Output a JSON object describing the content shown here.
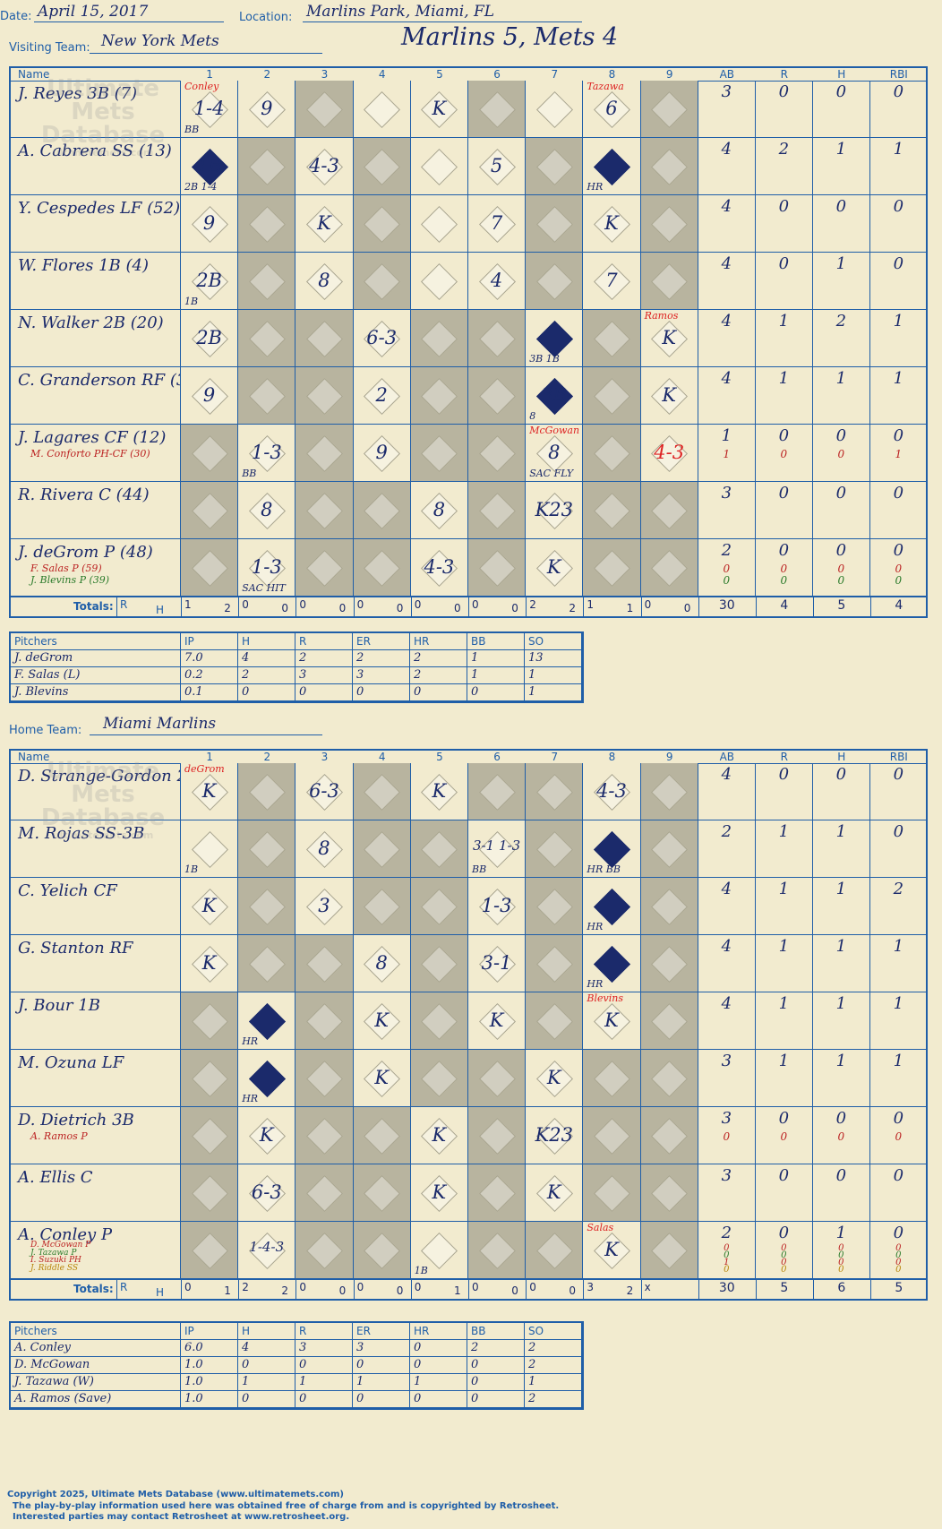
{
  "header": {
    "date_label": "Date:",
    "date": "April 15, 2017",
    "location_label": "Location:",
    "location": "Marlins Park, Miami, FL",
    "visiting_label": "Visiting Team:",
    "visiting_team": "New York Mets",
    "home_label": "Home Team:",
    "home_team": "Miami Marlins",
    "result": "Marlins 5, Mets 4"
  },
  "watermark": {
    "line1": "Ultimate",
    "line2": "Mets",
    "line3": "Database",
    "line4": "ultimatemets.com"
  },
  "col_headers": {
    "name": "Name",
    "innings": [
      "1",
      "2",
      "3",
      "4",
      "5",
      "6",
      "7",
      "8",
      "9"
    ],
    "stats": [
      "AB",
      "R",
      "H",
      "RBI"
    ]
  },
  "totals_label": "Totals:",
  "visitors": {
    "rows": [
      {
        "name": "J. Reyes 3B (7)",
        "stats": [
          "3",
          "0",
          "0",
          "0"
        ],
        "cells": [
          {
            "i": 1,
            "note": "Conley",
            "p": "1-4",
            "s": "BB"
          },
          {
            "i": 2,
            "p": "9"
          },
          {
            "i": 5,
            "p": "K"
          },
          {
            "i": 8,
            "note": "Tazawa",
            "p": "6"
          }
        ]
      },
      {
        "name": "A. Cabrera SS (13)",
        "stats": [
          "4",
          "2",
          "1",
          "1"
        ],
        "cells": [
          {
            "i": 1,
            "scored": true,
            "p": "1B",
            "s": "2B 1-4"
          },
          {
            "i": 3,
            "p": "4-3"
          },
          {
            "i": 6,
            "p": "5"
          },
          {
            "i": 8,
            "scored": true,
            "s": "HR"
          }
        ]
      },
      {
        "name": "Y. Cespedes LF (52)",
        "stats": [
          "4",
          "0",
          "0",
          "0"
        ],
        "cells": [
          {
            "i": 1,
            "p": "9"
          },
          {
            "i": 3,
            "p": "K"
          },
          {
            "i": 6,
            "p": "7"
          },
          {
            "i": 8,
            "p": "K"
          }
        ]
      },
      {
        "name": "W. Flores 1B (4)",
        "stats": [
          "4",
          "0",
          "1",
          "0"
        ],
        "cells": [
          {
            "i": 1,
            "p": "2B",
            "s": "1B"
          },
          {
            "i": 3,
            "p": "8"
          },
          {
            "i": 6,
            "p": "4"
          },
          {
            "i": 8,
            "p": "7"
          }
        ]
      },
      {
        "name": "N. Walker 2B (20)",
        "stats": [
          "4",
          "1",
          "2",
          "1"
        ],
        "cells": [
          {
            "i": 1,
            "p": "2B"
          },
          {
            "i": 4,
            "p": "6-3"
          },
          {
            "i": 7,
            "scored": true,
            "s": "3B 1B"
          },
          {
            "i": 9,
            "note": "Ramos",
            "p": "K"
          }
        ]
      },
      {
        "name": "C. Granderson RF (3)",
        "stats": [
          "4",
          "1",
          "1",
          "1"
        ],
        "cells": [
          {
            "i": 1,
            "p": "9"
          },
          {
            "i": 4,
            "p": "2"
          },
          {
            "i": 7,
            "scored": true,
            "p": "3B",
            "s": "8"
          },
          {
            "i": 9,
            "p": "K"
          }
        ]
      },
      {
        "name": "J. Lagares CF (12)",
        "stats": [
          "1",
          "0",
          "0",
          "0"
        ],
        "subs": [
          {
            "name": "M. Conforto PH-CF (30)",
            "color": "#b22",
            "stats": [
              "1",
              "0",
              "0",
              "1"
            ]
          }
        ],
        "cells": [
          {
            "i": 2,
            "p": "1-3",
            "s": "BB"
          },
          {
            "i": 4,
            "p": "9"
          },
          {
            "i": 7,
            "note": "McGowan",
            "p": "8",
            "s": "SAC FLY"
          },
          {
            "i": 9,
            "p": "4-3",
            "red": true
          }
        ]
      },
      {
        "name": "R. Rivera C (44)",
        "stats": [
          "3",
          "0",
          "0",
          "0"
        ],
        "cells": [
          {
            "i": 2,
            "p": "8"
          },
          {
            "i": 5,
            "p": "8"
          },
          {
            "i": 7,
            "p": "K23"
          }
        ]
      },
      {
        "name": "J. deGrom P (48)",
        "stats": [
          "2",
          "0",
          "0",
          "0"
        ],
        "subs": [
          {
            "name": "F. Salas P (59)",
            "color": "#b22",
            "stats": [
              "0",
              "0",
              "0",
              "0"
            ]
          },
          {
            "name": "J. Blevins P (39)",
            "color": "#2a7a2a",
            "stats": [
              "0",
              "0",
              "0",
              "0"
            ]
          }
        ],
        "cells": [
          {
            "i": 2,
            "p": "1-3",
            "s": "SAC HIT"
          },
          {
            "i": 5,
            "p": "4-3"
          },
          {
            "i": 7,
            "p": "K"
          }
        ]
      }
    ],
    "gray_pattern": [
      [
        0,
        0,
        1,
        0,
        0,
        1,
        0,
        0,
        1
      ],
      [
        0,
        1,
        0,
        1,
        0,
        0,
        1,
        0,
        1
      ],
      [
        0,
        1,
        0,
        1,
        0,
        0,
        1,
        0,
        1
      ],
      [
        0,
        1,
        0,
        1,
        0,
        0,
        1,
        0,
        1
      ],
      [
        0,
        1,
        1,
        0,
        1,
        1,
        0,
        1,
        0
      ],
      [
        0,
        1,
        1,
        0,
        1,
        1,
        0,
        1,
        0
      ],
      [
        1,
        0,
        1,
        0,
        1,
        1,
        0,
        1,
        0
      ],
      [
        1,
        0,
        1,
        1,
        0,
        1,
        0,
        1,
        1
      ],
      [
        1,
        0,
        1,
        1,
        0,
        1,
        0,
        1,
        1
      ]
    ],
    "totals": {
      "rh": [
        "R",
        "H"
      ],
      "innings": [
        [
          "1",
          "2"
        ],
        [
          "0",
          "0"
        ],
        [
          "0",
          "0"
        ],
        [
          "0",
          "0"
        ],
        [
          "0",
          "0"
        ],
        [
          "0",
          "0"
        ],
        [
          "2",
          "2"
        ],
        [
          "1",
          "1"
        ],
        [
          "0",
          "0"
        ]
      ],
      "stats": [
        "30",
        "4",
        "5",
        "4"
      ]
    },
    "pitchers": {
      "headers": [
        "Pitchers",
        "IP",
        "H",
        "R",
        "ER",
        "HR",
        "BB",
        "SO"
      ],
      "rows": [
        [
          "J. deGrom",
          "7.0",
          "4",
          "2",
          "2",
          "2",
          "1",
          "13"
        ],
        [
          "F. Salas (L)",
          "0.2",
          "2",
          "3",
          "3",
          "2",
          "1",
          "1"
        ],
        [
          "J. Blevins",
          "0.1",
          "0",
          "0",
          "0",
          "0",
          "0",
          "1"
        ]
      ]
    }
  },
  "home": {
    "rows": [
      {
        "name": "D. Strange-Gordon 2B",
        "stats": [
          "4",
          "0",
          "0",
          "0"
        ],
        "cells": [
          {
            "i": 1,
            "note": "deGrom",
            "p": "K"
          },
          {
            "i": 3,
            "p": "6-3"
          },
          {
            "i": 5,
            "p": "K"
          },
          {
            "i": 8,
            "p": "4-3"
          }
        ]
      },
      {
        "name": "M. Rojas SS-3B",
        "stats": [
          "2",
          "1",
          "1",
          "0"
        ],
        "cells": [
          {
            "i": 1,
            "s": "1B"
          },
          {
            "i": 3,
            "p": "8"
          },
          {
            "i": 6,
            "p": "3-1 1-3",
            "s": "BB"
          },
          {
            "i": 8,
            "scored": true,
            "s": "HR BB"
          }
        ]
      },
      {
        "name": "C. Yelich CF",
        "stats": [
          "4",
          "1",
          "1",
          "2"
        ],
        "cells": [
          {
            "i": 1,
            "p": "K"
          },
          {
            "i": 3,
            "p": "3"
          },
          {
            "i": 6,
            "p": "1-3"
          },
          {
            "i": 8,
            "scored": true,
            "s": "HR"
          }
        ]
      },
      {
        "name": "G. Stanton RF",
        "stats": [
          "4",
          "1",
          "1",
          "1"
        ],
        "cells": [
          {
            "i": 1,
            "p": "K"
          },
          {
            "i": 4,
            "p": "8"
          },
          {
            "i": 6,
            "p": "3-1"
          },
          {
            "i": 8,
            "scored": true,
            "s": "HR"
          }
        ]
      },
      {
        "name": "J. Bour 1B",
        "stats": [
          "4",
          "1",
          "1",
          "1"
        ],
        "cells": [
          {
            "i": 2,
            "scored": true,
            "s": "HR"
          },
          {
            "i": 4,
            "p": "K"
          },
          {
            "i": 6,
            "p": "K"
          },
          {
            "i": 8,
            "note": "Blevins",
            "p": "K"
          }
        ]
      },
      {
        "name": "M. Ozuna LF",
        "stats": [
          "3",
          "1",
          "1",
          "1"
        ],
        "cells": [
          {
            "i": 2,
            "scored": true,
            "s": "HR"
          },
          {
            "i": 4,
            "p": "K"
          },
          {
            "i": 7,
            "p": "K"
          }
        ]
      },
      {
        "name": "D. Dietrich 3B",
        "stats": [
          "3",
          "0",
          "0",
          "0"
        ],
        "subs": [
          {
            "name": "A. Ramos P",
            "color": "#b22",
            "stats": [
              "0",
              "0",
              "0",
              "0"
            ]
          }
        ],
        "cells": [
          {
            "i": 2,
            "p": "K"
          },
          {
            "i": 5,
            "p": "K"
          },
          {
            "i": 7,
            "p": "K23"
          }
        ]
      },
      {
        "name": "A. Ellis C",
        "stats": [
          "3",
          "0",
          "0",
          "0"
        ],
        "cells": [
          {
            "i": 2,
            "p": "6-3"
          },
          {
            "i": 5,
            "p": "K"
          },
          {
            "i": 7,
            "p": "K"
          }
        ]
      },
      {
        "name": "A. Conley P",
        "stats": [
          "2",
          "0",
          "1",
          "0"
        ],
        "subs": [
          {
            "name": "D. McGowan P",
            "color": "#b22",
            "stats": [
              "0",
              "0",
              "0",
              "0"
            ]
          },
          {
            "name": "J. Tazawa P",
            "color": "#2a7a2a",
            "stats": [
              "0",
              "0",
              "0",
              "0"
            ]
          },
          {
            "name": "I. Suzuki PH",
            "color": "#b22",
            "stats": [
              "1",
              "0",
              "0",
              "0"
            ]
          },
          {
            "name": "J. Riddle SS",
            "color": "#b8860b",
            "stats": [
              "0",
              "0",
              "0",
              "0"
            ]
          }
        ],
        "cells": [
          {
            "i": 2,
            "p": "1-4-3"
          },
          {
            "i": 5,
            "s": "1B"
          },
          {
            "i": 8,
            "note": "Salas",
            "p": "K"
          }
        ]
      }
    ],
    "gray_pattern": [
      [
        0,
        1,
        0,
        1,
        0,
        1,
        1,
        0,
        1
      ],
      [
        0,
        1,
        0,
        1,
        1,
        0,
        1,
        0,
        1
      ],
      [
        0,
        1,
        0,
        1,
        1,
        0,
        1,
        0,
        1
      ],
      [
        0,
        1,
        1,
        0,
        1,
        0,
        1,
        0,
        1
      ],
      [
        1,
        0,
        1,
        0,
        1,
        0,
        1,
        0,
        1
      ],
      [
        1,
        0,
        1,
        0,
        1,
        1,
        0,
        1,
        1
      ],
      [
        1,
        0,
        1,
        1,
        0,
        1,
        0,
        1,
        1
      ],
      [
        1,
        0,
        1,
        1,
        0,
        1,
        0,
        1,
        1
      ],
      [
        1,
        0,
        1,
        1,
        0,
        1,
        1,
        0,
        1
      ]
    ],
    "totals": {
      "rh": [
        "R",
        "H"
      ],
      "innings": [
        [
          "0",
          "1"
        ],
        [
          "2",
          "2"
        ],
        [
          "0",
          "0"
        ],
        [
          "0",
          "0"
        ],
        [
          "0",
          "1"
        ],
        [
          "0",
          "0"
        ],
        [
          "0",
          "0"
        ],
        [
          "3",
          "2"
        ],
        [
          "x",
          ""
        ]
      ],
      "stats": [
        "30",
        "5",
        "6",
        "5"
      ]
    },
    "pitchers": {
      "headers": [
        "Pitchers",
        "IP",
        "H",
        "R",
        "ER",
        "HR",
        "BB",
        "SO"
      ],
      "rows": [
        [
          "A. Conley",
          "6.0",
          "4",
          "3",
          "3",
          "0",
          "2",
          "2"
        ],
        [
          "D. McGowan",
          "1.0",
          "0",
          "0",
          "0",
          "0",
          "0",
          "2"
        ],
        [
          "J. Tazawa (W)",
          "1.0",
          "1",
          "1",
          "1",
          "1",
          "0",
          "1"
        ],
        [
          "A. Ramos (Save)",
          "1.0",
          "0",
          "0",
          "0",
          "0",
          "0",
          "2"
        ]
      ]
    }
  },
  "footer": {
    "line1": "Copyright 2025, Ultimate Mets Database (www.ultimatemets.com)",
    "line2": "The play-by-play information used here was obtained free of charge from and is copyrighted by Retrosheet.",
    "line3": "Interested parties may contact Retrosheet at www.retrosheet.org."
  }
}
